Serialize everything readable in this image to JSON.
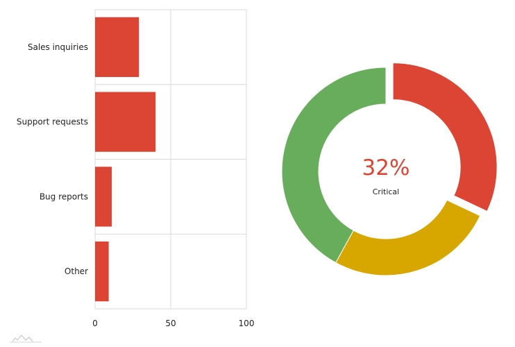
{
  "chart_data": [
    {
      "type": "bar",
      "orientation": "horizontal",
      "categories": [
        "Sales inquiries",
        "Support requests",
        "Bug reports",
        "Other"
      ],
      "values": [
        29,
        40,
        11,
        9
      ],
      "xlim": [
        0,
        100
      ],
      "xticks": [
        "0",
        "50",
        "100"
      ],
      "grid": true,
      "color": "#dc4534",
      "title": "",
      "xlabel": "",
      "ylabel": ""
    },
    {
      "type": "pie",
      "style": "donut",
      "slices": [
        {
          "value": 32,
          "color": "#dc4534",
          "exploded": true
        },
        {
          "value": 26,
          "color": "#d7a700"
        },
        {
          "value": 42,
          "color": "#68ad5c"
        }
      ],
      "center": {
        "value": "32%",
        "label": "Critical",
        "color": "#dc4534"
      }
    }
  ]
}
